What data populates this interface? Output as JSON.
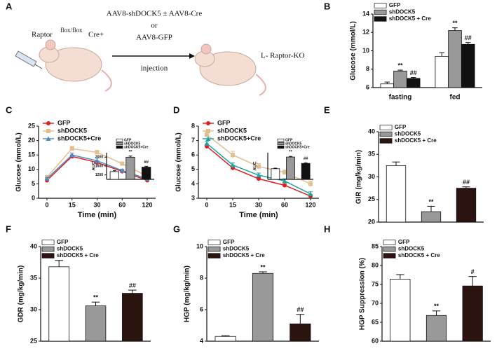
{
  "schematic": {
    "panel": "A",
    "source": "Raptor",
    "source_sup": "flox/flox",
    "source_sup2": "Cre+",
    "arrow_top": "AAV8-shDOCK5 ± AAV8-Cre",
    "arrow_mid": "or",
    "arrow_bottom": "AAV8-GFP",
    "arrow_under": "injection",
    "target": "L- Raptor-KO"
  },
  "chart_data": [
    {
      "panel": "B",
      "type": "bar",
      "ylabel": "Glucose (mmol/L)",
      "categories": [
        "fasting",
        "fed"
      ],
      "ylim": [
        6,
        14
      ],
      "yticks": [
        6,
        8,
        10,
        12,
        14
      ],
      "series": [
        {
          "name": "GFP",
          "color": "#ffffff",
          "values": [
            6.4,
            9.4
          ],
          "errors": [
            0.2,
            0.4
          ],
          "markers": [
            null,
            null
          ]
        },
        {
          "name": "shDOCK5",
          "color": "#999999",
          "values": [
            7.8,
            12.2
          ],
          "errors": [
            0.1,
            0.3
          ],
          "markers": [
            "**",
            "**"
          ]
        },
        {
          "name": "shDOCK5 + Cre",
          "color": "#111111",
          "values": [
            7.0,
            10.7
          ],
          "errors": [
            0.1,
            0.2
          ],
          "markers": [
            "##",
            "##"
          ]
        }
      ]
    },
    {
      "panel": "C",
      "type": "line",
      "xlabel": "Time (min)",
      "ylabel": "Glucose (mmol/L)",
      "categories": [
        "0",
        "15",
        "30",
        "60",
        "120"
      ],
      "ylim": [
        0,
        25
      ],
      "yticks": [
        0,
        5,
        10,
        15,
        20,
        25
      ],
      "series": [
        {
          "name": "GFP",
          "color": "#e02020",
          "marker": "circle",
          "values": [
            6.2,
            14.5,
            12.4,
            9.3,
            6.2
          ],
          "errors": [
            0.3,
            0.5,
            0.5,
            0.4,
            0.3
          ]
        },
        {
          "name": "shDOCK5",
          "color": "#e2c08d",
          "marker": "square",
          "values": [
            7.3,
            17.2,
            15.9,
            12.0,
            7.7
          ],
          "errors": [
            0.3,
            0.8,
            0.7,
            0.6,
            0.4
          ]
        },
        {
          "name": "shDOCK5+Cre",
          "color": "#4f8ac4",
          "marker": "triangle",
          "values": [
            6.8,
            15.0,
            13.0,
            9.6,
            6.7
          ],
          "errors": [
            0.3,
            0.7,
            0.9,
            0.5,
            0.3
          ]
        }
      ],
      "inset": {
        "ylabel": "AUC",
        "ylim": [
          1000,
          2200
        ],
        "yticks": [
          1200,
          1600,
          2000
        ],
        "series": [
          {
            "name": "GFP",
            "color": "#ffffff",
            "values": [
              1350
            ],
            "errors": [
              40
            ],
            "markers": [
              null
            ]
          },
          {
            "name": "shDOCK5",
            "color": "#999999",
            "values": [
              2000
            ],
            "errors": [
              50
            ],
            "markers": [
              "**"
            ]
          },
          {
            "name": "shDOCK5+Cre",
            "color": "#111111",
            "values": [
              1550
            ],
            "errors": [
              40
            ],
            "markers": [
              "##"
            ]
          }
        ]
      }
    },
    {
      "panel": "D",
      "type": "line",
      "xlabel": "Time (min)",
      "ylabel": "Glucose (mmol/L)",
      "categories": [
        "0",
        "15",
        "30",
        "60",
        "120"
      ],
      "ylim": [
        3,
        8
      ],
      "yticks": [
        3,
        4,
        5,
        6,
        7,
        8
      ],
      "series": [
        {
          "name": "GFP",
          "color": "#e02020",
          "marker": "circle",
          "values": [
            6.6,
            5.1,
            4.35,
            3.9,
            3.15
          ],
          "errors": [
            0.15,
            0.15,
            0.1,
            0.1,
            0.1
          ]
        },
        {
          "name": "shDOCK5",
          "color": "#e2c08d",
          "marker": "square",
          "values": [
            7.4,
            6.0,
            5.2,
            4.8,
            4.0
          ],
          "errors": [
            0.2,
            0.25,
            0.2,
            0.15,
            0.2
          ]
        },
        {
          "name": "shDOCK5+Cre",
          "color": "#1fa5a5",
          "marker": "triangle",
          "values": [
            6.8,
            5.3,
            4.6,
            4.2,
            3.3
          ],
          "errors": [
            0.15,
            0.15,
            0.15,
            0.15,
            0.15
          ]
        }
      ],
      "inset": {
        "ylabel": "AUC",
        "ylim": [
          15,
          40
        ],
        "series": [
          {
            "name": "GFP",
            "color": "#ffffff",
            "values": [
              25
            ],
            "errors": [
              0.5
            ],
            "markers": [
              null
            ]
          },
          {
            "name": "shDOCK5",
            "color": "#999999",
            "values": [
              36
            ],
            "errors": [
              0.6
            ],
            "markers": [
              "**"
            ]
          },
          {
            "name": "shDOCK5+Cre",
            "color": "#111111",
            "values": [
              30
            ],
            "errors": [
              0.5
            ],
            "markers": [
              "##"
            ]
          }
        ]
      }
    },
    {
      "panel": "E",
      "type": "bar",
      "ylabel": "GIR (mg/kg/min)",
      "ylim": [
        20,
        40
      ],
      "yticks": [
        20,
        25,
        30,
        35,
        40
      ],
      "series": [
        {
          "name": "GFP",
          "color": "#ffffff",
          "values": [
            32.5
          ],
          "errors": [
            0.8
          ],
          "markers": [
            null
          ]
        },
        {
          "name": "shDOCK5",
          "color": "#999999",
          "values": [
            22.3
          ],
          "errors": [
            1.2
          ],
          "markers": [
            "**"
          ]
        },
        {
          "name": "shDOCK5 + Cre",
          "color": "#2b1410",
          "values": [
            27.5
          ],
          "errors": [
            0.3
          ],
          "markers": [
            "##"
          ]
        }
      ]
    },
    {
      "panel": "F",
      "type": "bar",
      "ylabel": "GDR (mg/kg/min)",
      "ylim": [
        25,
        40
      ],
      "yticks": [
        25,
        30,
        35,
        40
      ],
      "series": [
        {
          "name": "GFP",
          "color": "#ffffff",
          "values": [
            36.8
          ],
          "errors": [
            1.0
          ],
          "markers": [
            null
          ]
        },
        {
          "name": "shDOCK5",
          "color": "#999999",
          "values": [
            30.6
          ],
          "errors": [
            0.6
          ],
          "markers": [
            "**"
          ]
        },
        {
          "name": "shDOCK5 + Cre",
          "color": "#2b1410",
          "values": [
            32.6
          ],
          "errors": [
            0.5
          ],
          "markers": [
            "##"
          ]
        }
      ]
    },
    {
      "panel": "G",
      "type": "bar",
      "ylabel": "HGP (mg/kg/min)",
      "ylim": [
        4,
        10
      ],
      "yticks": [
        4,
        6,
        8,
        10
      ],
      "series": [
        {
          "name": "GFP",
          "color": "#ffffff",
          "values": [
            4.3
          ],
          "errors": [
            0.05
          ],
          "markers": [
            null
          ]
        },
        {
          "name": "shDOCK5",
          "color": "#999999",
          "values": [
            8.3
          ],
          "errors": [
            0.1
          ],
          "markers": [
            "**"
          ]
        },
        {
          "name": "shDOCK5 + Cre",
          "color": "#2b1410",
          "values": [
            5.1
          ],
          "errors": [
            0.6
          ],
          "markers": [
            "##"
          ]
        }
      ]
    },
    {
      "panel": "H",
      "type": "bar",
      "ylabel": "HGP Suppression (%)",
      "ylim": [
        60,
        85
      ],
      "yticks": [
        60,
        65,
        70,
        75,
        80,
        85
      ],
      "series": [
        {
          "name": "GFP",
          "color": "#ffffff",
          "values": [
            76.4
          ],
          "errors": [
            1.2
          ],
          "markers": [
            null
          ]
        },
        {
          "name": "shDOCK5",
          "color": "#999999",
          "values": [
            66.8
          ],
          "errors": [
            1.2
          ],
          "markers": [
            "**"
          ]
        },
        {
          "name": "shDOCK5 + Cre",
          "color": "#2b1410",
          "values": [
            74.6
          ],
          "errors": [
            2.5
          ],
          "markers": [
            "#"
          ]
        }
      ]
    }
  ]
}
